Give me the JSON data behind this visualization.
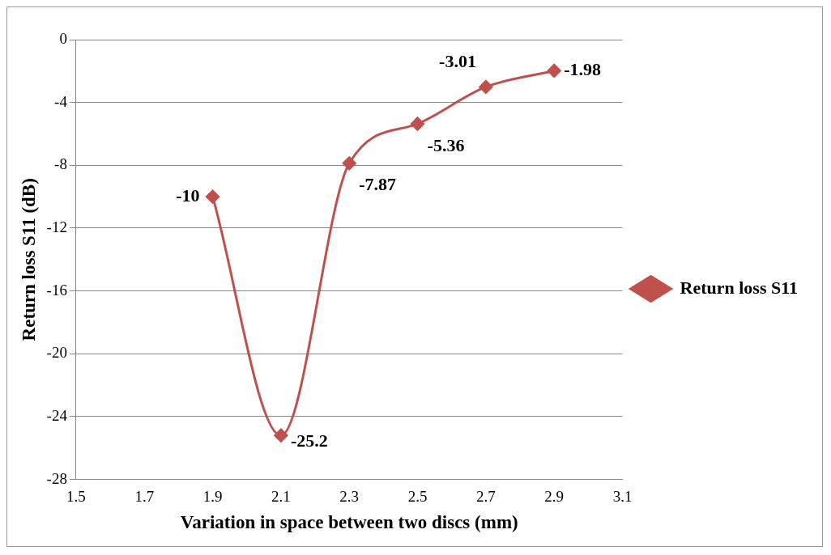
{
  "chart_data": {
    "type": "line",
    "xlabel": "Variation in space between two discs (mm)",
    "ylabel": "Return loss S11 (dB)",
    "x": [
      1.9,
      2.1,
      2.3,
      2.5,
      2.7,
      2.9
    ],
    "series": [
      {
        "name": "Return loss S11",
        "color": "#c0504d",
        "values": [
          -10,
          -25.2,
          -7.87,
          -5.36,
          -3.01,
          -1.98
        ]
      }
    ],
    "xlim": [
      1.5,
      3.1
    ],
    "xticks": [
      1.5,
      1.7,
      1.9,
      2.1,
      2.3,
      2.5,
      2.7,
      2.9,
      3.1
    ],
    "ylim": [
      -28,
      0
    ],
    "yticks": [
      -28,
      -24,
      -20,
      -16,
      -12,
      -8,
      -4,
      0
    ],
    "grid": "y",
    "legend": "right",
    "marker": "diamond",
    "line_style": "solid",
    "data_labels": true
  }
}
